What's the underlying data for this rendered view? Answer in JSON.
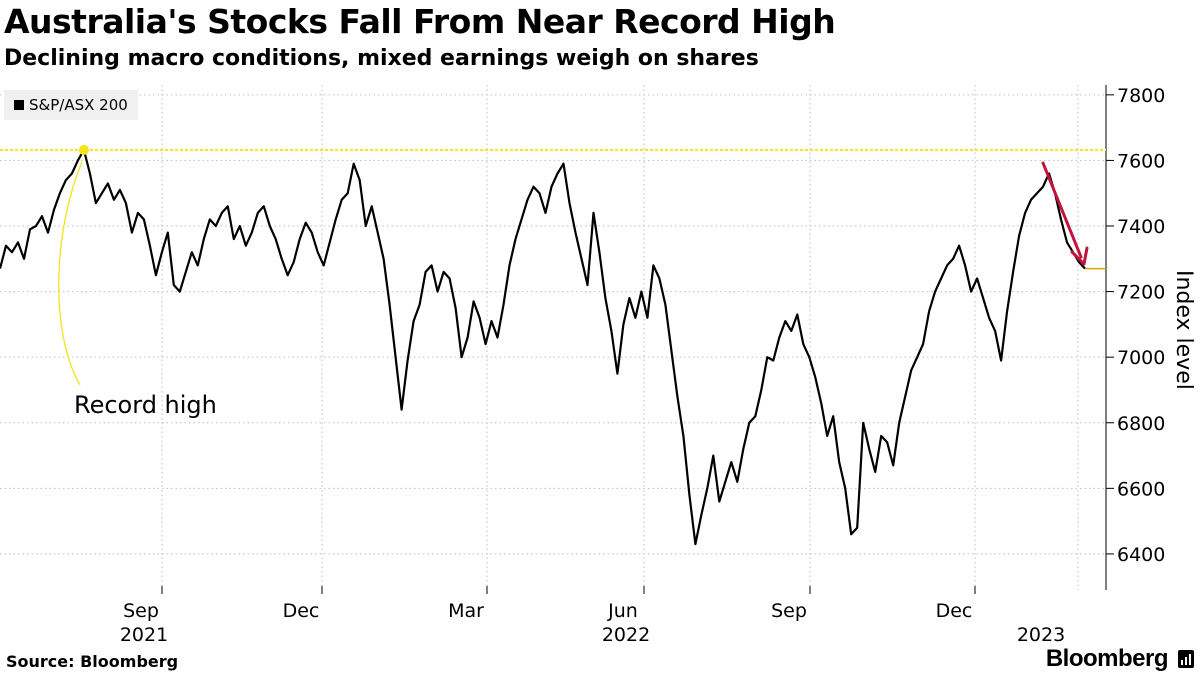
{
  "title": "Australia's Stocks Fall From Near Record High",
  "subtitle": "Declining macro conditions, mixed earnings weigh on shares",
  "source": "Source: Bloomberg",
  "brand": "Bloomberg",
  "colors": {
    "line": "#000000",
    "record_line": "#f5e31a",
    "arrow": "#c0143c",
    "grid": "#bdbdbd"
  },
  "chart_data": {
    "type": "line",
    "series": [
      {
        "name": "S&P/ASX 200"
      }
    ],
    "ylabel": "Index level",
    "ylim": [
      6290,
      7830
    ],
    "y_ticks": [
      6400,
      6600,
      6800,
      7000,
      7200,
      7400,
      7600,
      7800
    ],
    "x_ticks": [
      {
        "label": "Sep",
        "year": "2021"
      },
      {
        "label": "Dec",
        "year": ""
      },
      {
        "label": "Mar",
        "year": ""
      },
      {
        "label": "Jun",
        "year": "2022"
      },
      {
        "label": "Sep",
        "year": ""
      },
      {
        "label": "Dec",
        "year": ""
      },
      {
        "label": "",
        "year": "2023"
      }
    ],
    "record_high": 7632,
    "last_value": 7270,
    "annotation": "Record high",
    "points": [
      [
        0,
        7270
      ],
      [
        1,
        7340
      ],
      [
        2,
        7320
      ],
      [
        3,
        7350
      ],
      [
        4,
        7300
      ],
      [
        5,
        7390
      ],
      [
        6,
        7400
      ],
      [
        7,
        7430
      ],
      [
        8,
        7380
      ],
      [
        9,
        7450
      ],
      [
        10,
        7500
      ],
      [
        11,
        7540
      ],
      [
        12,
        7560
      ],
      [
        13,
        7600
      ],
      [
        14,
        7632
      ],
      [
        15,
        7560
      ],
      [
        16,
        7470
      ],
      [
        17,
        7500
      ],
      [
        18,
        7530
      ],
      [
        19,
        7480
      ],
      [
        20,
        7510
      ],
      [
        21,
        7470
      ],
      [
        22,
        7380
      ],
      [
        23,
        7440
      ],
      [
        24,
        7420
      ],
      [
        25,
        7340
      ],
      [
        26,
        7250
      ],
      [
        27,
        7320
      ],
      [
        28,
        7380
      ],
      [
        29,
        7220
      ],
      [
        30,
        7200
      ],
      [
        31,
        7260
      ],
      [
        32,
        7320
      ],
      [
        33,
        7280
      ],
      [
        34,
        7360
      ],
      [
        35,
        7420
      ],
      [
        36,
        7400
      ],
      [
        37,
        7440
      ],
      [
        38,
        7460
      ],
      [
        39,
        7360
      ],
      [
        40,
        7400
      ],
      [
        41,
        7340
      ],
      [
        42,
        7380
      ],
      [
        43,
        7440
      ],
      [
        44,
        7460
      ],
      [
        45,
        7400
      ],
      [
        46,
        7360
      ],
      [
        47,
        7300
      ],
      [
        48,
        7250
      ],
      [
        49,
        7290
      ],
      [
        50,
        7360
      ],
      [
        51,
        7410
      ],
      [
        52,
        7380
      ],
      [
        53,
        7320
      ],
      [
        54,
        7280
      ],
      [
        55,
        7350
      ],
      [
        56,
        7420
      ],
      [
        57,
        7480
      ],
      [
        58,
        7500
      ],
      [
        59,
        7590
      ],
      [
        60,
        7540
      ],
      [
        61,
        7400
      ],
      [
        62,
        7460
      ],
      [
        63,
        7380
      ],
      [
        64,
        7300
      ],
      [
        65,
        7160
      ],
      [
        66,
        7000
      ],
      [
        67,
        6840
      ],
      [
        68,
        6990
      ],
      [
        69,
        7110
      ],
      [
        70,
        7160
      ],
      [
        71,
        7260
      ],
      [
        72,
        7280
      ],
      [
        73,
        7200
      ],
      [
        74,
        7260
      ],
      [
        75,
        7240
      ],
      [
        76,
        7150
      ],
      [
        77,
        7000
      ],
      [
        78,
        7060
      ],
      [
        79,
        7170
      ],
      [
        80,
        7120
      ],
      [
        81,
        7040
      ],
      [
        82,
        7110
      ],
      [
        83,
        7060
      ],
      [
        84,
        7160
      ],
      [
        85,
        7280
      ],
      [
        86,
        7360
      ],
      [
        87,
        7420
      ],
      [
        88,
        7480
      ],
      [
        89,
        7520
      ],
      [
        90,
        7500
      ],
      [
        91,
        7440
      ],
      [
        92,
        7520
      ],
      [
        93,
        7560
      ],
      [
        94,
        7590
      ],
      [
        95,
        7470
      ],
      [
        96,
        7380
      ],
      [
        97,
        7300
      ],
      [
        98,
        7220
      ],
      [
        99,
        7440
      ],
      [
        100,
        7320
      ],
      [
        101,
        7180
      ],
      [
        102,
        7080
      ],
      [
        103,
        6950
      ],
      [
        104,
        7100
      ],
      [
        105,
        7180
      ],
      [
        106,
        7120
      ],
      [
        107,
        7200
      ],
      [
        108,
        7120
      ],
      [
        109,
        7280
      ],
      [
        110,
        7240
      ],
      [
        111,
        7160
      ],
      [
        112,
        7020
      ],
      [
        113,
        6880
      ],
      [
        114,
        6760
      ],
      [
        115,
        6580
      ],
      [
        116,
        6430
      ],
      [
        117,
        6520
      ],
      [
        118,
        6600
      ],
      [
        119,
        6700
      ],
      [
        120,
        6560
      ],
      [
        121,
        6620
      ],
      [
        122,
        6680
      ],
      [
        123,
        6620
      ],
      [
        124,
        6720
      ],
      [
        125,
        6800
      ],
      [
        126,
        6820
      ],
      [
        127,
        6900
      ],
      [
        128,
        7000
      ],
      [
        129,
        6990
      ],
      [
        130,
        7060
      ],
      [
        131,
        7110
      ],
      [
        132,
        7080
      ],
      [
        133,
        7130
      ],
      [
        134,
        7040
      ],
      [
        135,
        7000
      ],
      [
        136,
        6940
      ],
      [
        137,
        6860
      ],
      [
        138,
        6760
      ],
      [
        139,
        6820
      ],
      [
        140,
        6680
      ],
      [
        141,
        6600
      ],
      [
        142,
        6460
      ],
      [
        143,
        6480
      ],
      [
        144,
        6800
      ],
      [
        145,
        6720
      ],
      [
        146,
        6650
      ],
      [
        147,
        6760
      ],
      [
        148,
        6740
      ],
      [
        149,
        6670
      ],
      [
        150,
        6800
      ],
      [
        151,
        6880
      ],
      [
        152,
        6960
      ],
      [
        153,
        7000
      ],
      [
        154,
        7040
      ],
      [
        155,
        7140
      ],
      [
        156,
        7200
      ],
      [
        157,
        7240
      ],
      [
        158,
        7280
      ],
      [
        159,
        7300
      ],
      [
        160,
        7340
      ],
      [
        161,
        7280
      ],
      [
        162,
        7200
      ],
      [
        163,
        7240
      ],
      [
        164,
        7180
      ],
      [
        165,
        7120
      ],
      [
        166,
        7080
      ],
      [
        167,
        6990
      ],
      [
        168,
        7140
      ],
      [
        169,
        7260
      ],
      [
        170,
        7370
      ],
      [
        171,
        7440
      ],
      [
        172,
        7480
      ],
      [
        173,
        7500
      ],
      [
        174,
        7520
      ],
      [
        175,
        7560
      ],
      [
        176,
        7500
      ],
      [
        177,
        7420
      ],
      [
        178,
        7350
      ],
      [
        179,
        7320
      ],
      [
        180,
        7290
      ],
      [
        181,
        7270
      ]
    ]
  }
}
